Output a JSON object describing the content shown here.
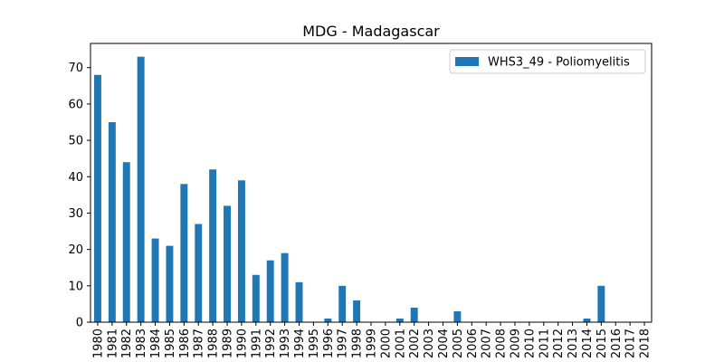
{
  "chart_data": {
    "type": "bar",
    "title": "MDG - Madagascar",
    "xlabel": "",
    "ylabel": "",
    "categories": [
      "1980",
      "1981",
      "1982",
      "1983",
      "1984",
      "1985",
      "1986",
      "1987",
      "1988",
      "1989",
      "1990",
      "1991",
      "1992",
      "1993",
      "1994",
      "1995",
      "1996",
      "1997",
      "1998",
      "1999",
      "2000",
      "2001",
      "2002",
      "2003",
      "2004",
      "2005",
      "2006",
      "2007",
      "2008",
      "2009",
      "2010",
      "2011",
      "2012",
      "2013",
      "2014",
      "2015",
      "2016",
      "2017",
      "2018"
    ],
    "series": [
      {
        "name": "WHS3_49 - Poliomyelitis",
        "values": [
          68,
          55,
          44,
          73,
          23,
          21,
          38,
          27,
          42,
          32,
          39,
          13,
          17,
          19,
          11,
          0,
          1,
          10,
          6,
          0,
          0,
          1,
          4,
          0,
          0,
          3,
          0,
          0,
          0,
          0,
          0,
          0,
          0,
          0,
          1,
          10,
          0,
          0,
          0
        ],
        "color": "#1f77b4"
      }
    ],
    "yticks": [
      0,
      10,
      20,
      30,
      40,
      50,
      60,
      70
    ],
    "ylim": [
      0,
      76.65
    ],
    "grid": false,
    "legend_position": "top-right"
  }
}
